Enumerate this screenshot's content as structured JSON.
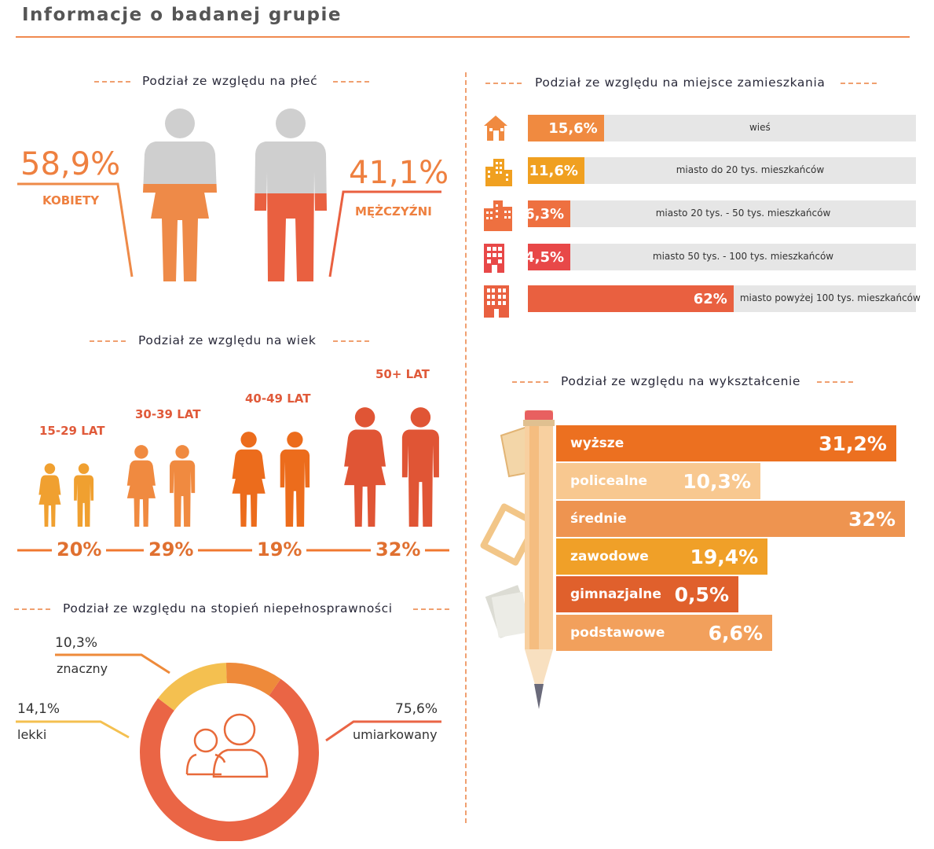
{
  "header": {
    "title": "Informacje o badanej grupie"
  },
  "sections": {
    "sex": "Podział ze względu na płeć",
    "age": "Podział ze względu na wiek",
    "disability": "Podział ze względu na stopień niepełnosprawności",
    "residence": "Podział ze względu na miejsce zamieszkania",
    "education": "Podział ze względu na wykształcenie"
  },
  "colors": {
    "accent": "#f08a50",
    "grey": "#e6e6e6"
  },
  "chart_data": [
    {
      "type": "pictogram",
      "title": "Podział ze względu na płeć",
      "categories": [
        "KOBIETY",
        "MĘŻCZYŹNI"
      ],
      "values": [
        58.9,
        41.1
      ],
      "value_labels": [
        "58,9%",
        "41,1%"
      ],
      "icons": [
        "woman-figure-icon",
        "man-figure-icon"
      ]
    },
    {
      "type": "pictogram",
      "title": "Podział ze względu na wiek",
      "categories": [
        "15-29 LAT",
        "30-39 LAT",
        "40-49 LAT",
        "50+ LAT"
      ],
      "values": [
        20,
        29,
        19,
        32
      ],
      "value_labels": [
        "20%",
        "29%",
        "19%",
        "32%"
      ],
      "colors": [
        "#f0a030",
        "#f08a40",
        "#ec6c1c",
        "#e05535"
      ]
    },
    {
      "type": "bar",
      "orientation": "horizontal",
      "title": "Podział ze względu na miejsce zamieszkania",
      "categories": [
        "wieś",
        "miasto do 20 tys. mieszkańców",
        "miasto 20 tys. - 50 tys. mieszkańców",
        "miasto 50 tys. - 100 tys. mieszkańców",
        "miasto powyżej 100 tys. mieszkańców"
      ],
      "values": [
        15.6,
        11.6,
        6.3,
        4.5,
        62
      ],
      "value_labels": [
        "15,6%",
        "11,6%",
        "6,3%",
        "4,5%",
        "62%"
      ],
      "colors": [
        "#f08a40",
        "#f0a020",
        "#ee7040",
        "#e84848",
        "#e96040"
      ],
      "icons": [
        "house-icon",
        "small-city-icon",
        "city-icon",
        "office-building-icon",
        "apartment-block-icon"
      ],
      "xlim": [
        0,
        100
      ]
    },
    {
      "type": "bar",
      "orientation": "horizontal",
      "title": "Podział ze względu na wykształcenie",
      "categories": [
        "wyższe",
        "policealne",
        "średnie",
        "zawodowe",
        "gimnazjalne",
        "podstawowe"
      ],
      "values": [
        31.2,
        10.3,
        32,
        19.4,
        0.5,
        6.6
      ],
      "value_labels": [
        "31,2%",
        "10,3%",
        "32%",
        "19,4%",
        "0,5%",
        "6,6%"
      ],
      "colors": [
        "#ec7020",
        "#f8c890",
        "#ee9450",
        "#f0a028",
        "#e0602c",
        "#f2a05c"
      ]
    },
    {
      "type": "pie",
      "title": "Podział ze względu na stopień niepełnosprawności",
      "categories": [
        "umiarkowany",
        "lekki",
        "znaczny"
      ],
      "values": [
        75.6,
        14.1,
        10.3
      ],
      "value_labels": [
        "75,6%",
        "14,1%",
        "10,3%"
      ],
      "colors": [
        "#ea6545",
        "#f4c050",
        "#ee8a3a"
      ]
    }
  ]
}
